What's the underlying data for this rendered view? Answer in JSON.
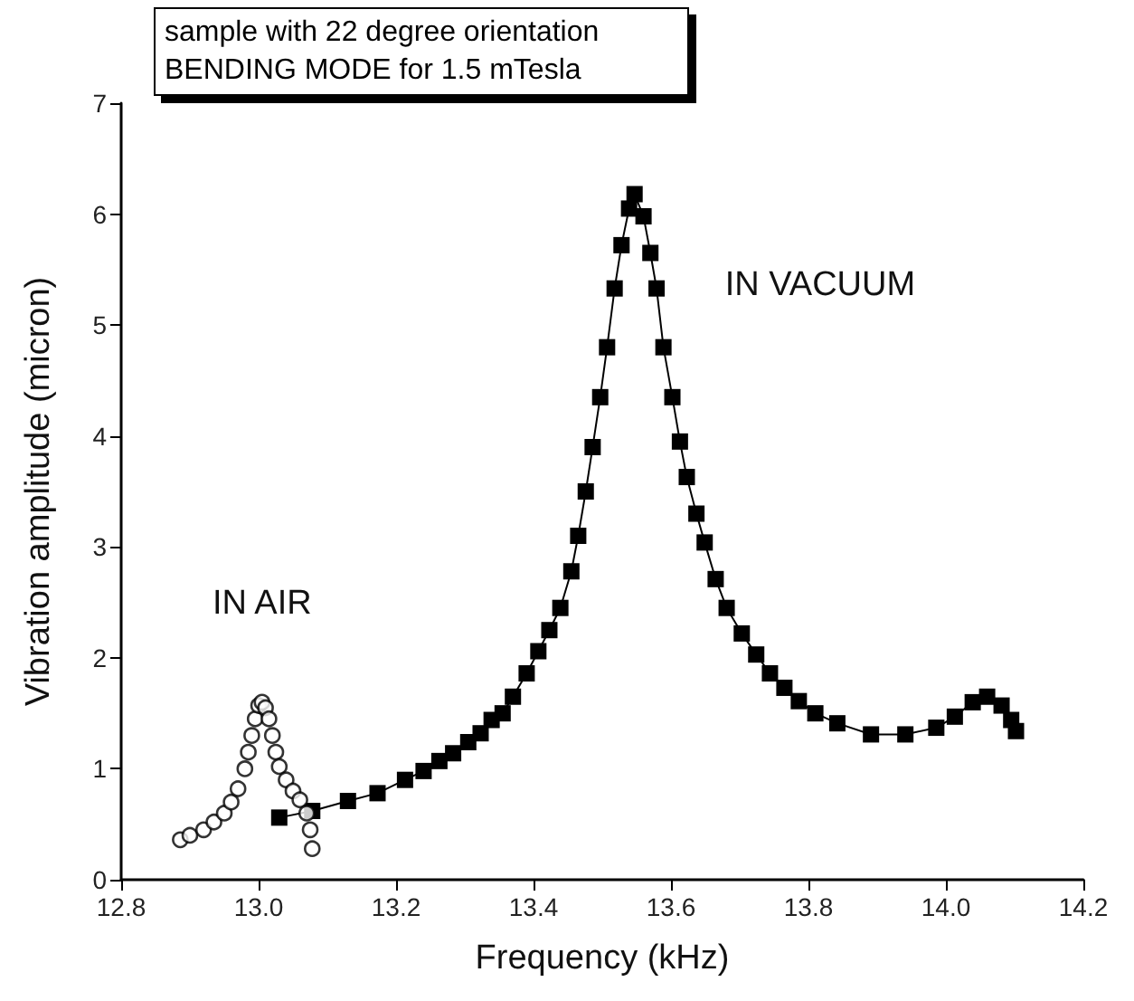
{
  "chart_data": {
    "type": "line",
    "title": "sample with 22 degree orientation",
    "subtitle": "BENDING MODE for 1.5 mTesla",
    "xlabel": "Frequency (kHz)",
    "ylabel": "Vibration amplitude (micron)",
    "xlim": [
      12.8,
      14.2
    ],
    "xticks": [
      {
        "value": 12.8,
        "label": "12.8"
      },
      {
        "value": 13,
        "label": "13.0"
      },
      {
        "value": 13.2,
        "label": "13.2"
      },
      {
        "value": 13.4,
        "label": "13.4"
      },
      {
        "value": 13.6,
        "label": "13.6"
      },
      {
        "value": 13.8,
        "label": "13.8"
      },
      {
        "value": 14,
        "label": "14.0"
      },
      {
        "value": 14.2,
        "label": "14.2"
      }
    ],
    "ylim": [
      0,
      7
    ],
    "yticks": [
      0,
      1,
      2,
      3,
      4,
      5,
      6,
      7
    ],
    "grid": false,
    "legend": false,
    "series": [
      {
        "name": "IN AIR",
        "type": "scatter",
        "marker": "circle",
        "color": "#000000",
        "x": [
          12.886,
          12.9,
          12.92,
          12.935,
          12.95,
          12.96,
          12.97,
          12.98,
          12.985,
          12.99,
          12.995,
          13.0,
          13.005,
          13.01,
          13.015,
          13.02,
          13.025,
          13.03,
          13.04,
          13.05,
          13.06,
          13.07,
          13.075,
          13.078
        ],
        "values": [
          0.36,
          0.4,
          0.45,
          0.52,
          0.6,
          0.7,
          0.82,
          1.0,
          1.15,
          1.3,
          1.45,
          1.57,
          1.6,
          1.55,
          1.45,
          1.3,
          1.15,
          1.02,
          0.9,
          0.8,
          0.72,
          0.6,
          0.45,
          0.28
        ]
      },
      {
        "name": "IN VACUUM",
        "marker": "square",
        "color": "#000000",
        "x": [
          13.03,
          13.078,
          13.13,
          13.173,
          13.213,
          13.24,
          13.263,
          13.283,
          13.305,
          13.323,
          13.339,
          13.355,
          13.37,
          13.39,
          13.407,
          13.423,
          13.439,
          13.455,
          13.465,
          13.476,
          13.486,
          13.497,
          13.507,
          13.518,
          13.528,
          13.539,
          13.547,
          13.56,
          13.57,
          13.579,
          13.589,
          13.602,
          13.613,
          13.623,
          13.637,
          13.649,
          13.665,
          13.681,
          13.703,
          13.724,
          13.744,
          13.765,
          13.786,
          13.81,
          13.842,
          13.891,
          13.941,
          13.986,
          14.013,
          14.039,
          14.06,
          14.081,
          14.095,
          14.102
        ],
        "values": [
          0.56,
          0.62,
          0.71,
          0.78,
          0.9,
          0.98,
          1.07,
          1.14,
          1.24,
          1.32,
          1.44,
          1.5,
          1.65,
          1.86,
          2.06,
          2.25,
          2.45,
          2.78,
          3.1,
          3.5,
          3.9,
          4.35,
          4.8,
          5.33,
          5.72,
          6.05,
          6.18,
          5.98,
          5.65,
          5.33,
          4.8,
          4.35,
          3.95,
          3.63,
          3.3,
          3.04,
          2.71,
          2.45,
          2.22,
          2.03,
          1.86,
          1.73,
          1.61,
          1.5,
          1.41,
          1.31,
          1.31,
          1.37,
          1.47,
          1.6,
          1.65,
          1.57,
          1.44,
          1.34
        ]
      }
    ]
  }
}
